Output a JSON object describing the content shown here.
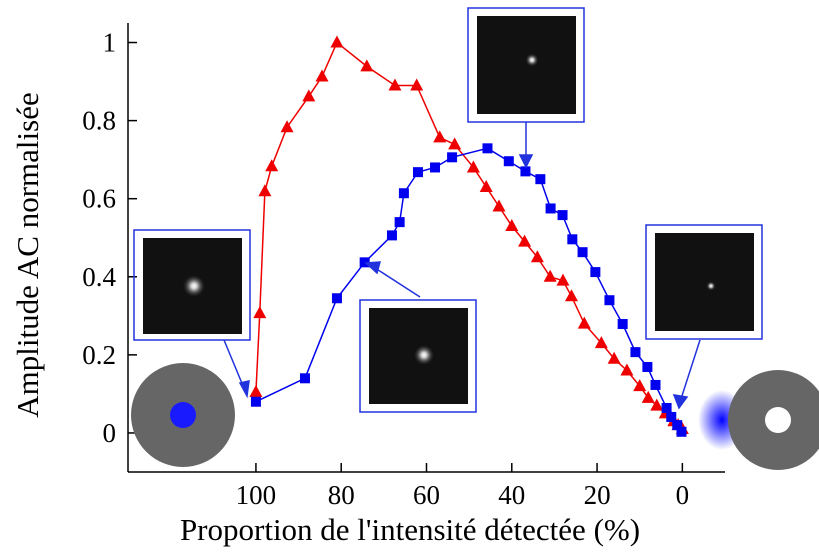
{
  "chart_data": {
    "type": "line",
    "x_label": "Proportion de l'intensité détectée (%)",
    "y_label": "Amplitude AC normalisée",
    "xlim": [
      130,
      -10
    ],
    "xticks": [
      100,
      80,
      60,
      40,
      20,
      0
    ],
    "ylim": [
      -0.1,
      1.05
    ],
    "yticks": [
      0,
      0.2,
      0.4,
      0.6,
      0.8,
      1
    ],
    "series": [
      {
        "color": "#ee0000",
        "marker": "triangle",
        "x": [
          100,
          99.1,
          97.9,
          96.3,
          92.7,
          87.6,
          84.5,
          81,
          74,
          67.4,
          62.3,
          56.9,
          53.4,
          49,
          46,
          43,
          40,
          37,
          34,
          31,
          28,
          26,
          23,
          19,
          16,
          13,
          10,
          8,
          6,
          4,
          2,
          1,
          0
        ],
        "values": [
          0.105,
          0.307,
          0.619,
          0.683,
          0.783,
          0.862,
          0.913,
          1.0,
          0.939,
          0.89,
          0.89,
          0.757,
          0.739,
          0.68,
          0.63,
          0.58,
          0.53,
          0.49,
          0.45,
          0.4,
          0.39,
          0.35,
          0.28,
          0.23,
          0.19,
          0.16,
          0.12,
          0.09,
          0.07,
          0.05,
          0.03,
          0.02,
          0.01
        ]
      },
      {
        "color": "#0000ee",
        "marker": "square",
        "x": [
          100,
          88.5,
          81,
          74.5,
          68.1,
          66.3,
          65.3,
          62,
          58,
          54,
          45.7,
          40.7,
          36.8,
          33.3,
          30.9,
          28.1,
          25.8,
          23.4,
          20.4,
          17.1,
          14,
          11,
          8.2,
          6.3,
          3.7,
          2.6,
          1.2,
          0.2
        ],
        "values": [
          0.08,
          0.14,
          0.345,
          0.437,
          0.506,
          0.54,
          0.614,
          0.668,
          0.68,
          0.706,
          0.729,
          0.696,
          0.67,
          0.65,
          0.575,
          0.558,
          0.496,
          0.463,
          0.412,
          0.34,
          0.279,
          0.207,
          0.169,
          0.123,
          0.064,
          0.041,
          0.02,
          0.003
        ]
      }
    ]
  }
}
